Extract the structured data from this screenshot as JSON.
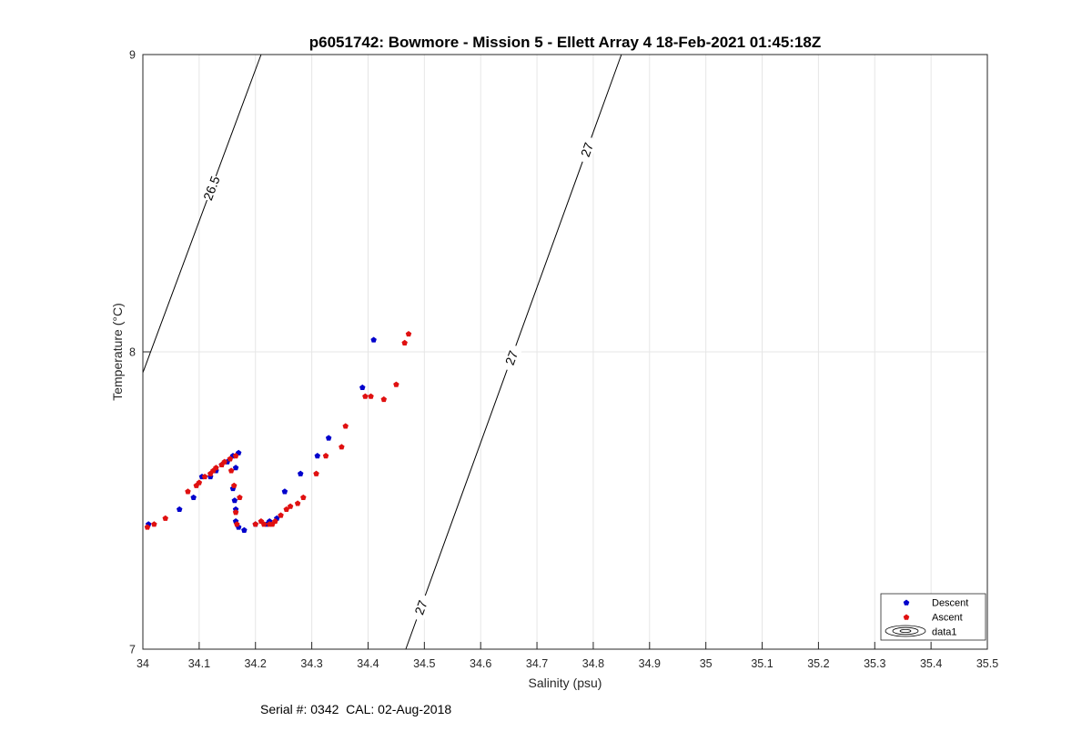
{
  "chart_data": {
    "type": "scatter",
    "title": "p6051742: Bowmore - Mission 5 - Ellett Array 4 18-Feb-2021 01:45:18Z",
    "xlabel": "Salinity (psu)",
    "ylabel": "Temperature (°C)",
    "xlim": [
      34,
      35.5
    ],
    "ylim": [
      7,
      9
    ],
    "x_ticks": [
      "34",
      "34.1",
      "34.2",
      "34.3",
      "34.4",
      "34.5",
      "34.6",
      "34.7",
      "34.8",
      "34.9",
      "35",
      "35.1",
      "35.2",
      "35.3",
      "35.4",
      "35.5"
    ],
    "y_ticks": [
      "7",
      "8",
      "9"
    ],
    "grid": true,
    "legend_position": "bottom-right",
    "legend": [
      "Descent",
      "Ascent",
      "data1"
    ],
    "series": [
      {
        "name": "Descent",
        "color": "#0000cc",
        "points": [
          [
            34.01,
            7.42
          ],
          [
            34.065,
            7.47
          ],
          [
            34.09,
            7.51
          ],
          [
            34.105,
            7.58
          ],
          [
            34.12,
            7.58
          ],
          [
            34.13,
            7.6
          ],
          [
            34.14,
            7.62
          ],
          [
            34.15,
            7.63
          ],
          [
            34.16,
            7.65
          ],
          [
            34.17,
            7.66
          ],
          [
            34.165,
            7.61
          ],
          [
            34.16,
            7.54
          ],
          [
            34.163,
            7.5
          ],
          [
            34.165,
            7.47
          ],
          [
            34.165,
            7.43
          ],
          [
            34.17,
            7.41
          ],
          [
            34.18,
            7.4
          ],
          [
            34.2,
            7.42
          ],
          [
            34.22,
            7.42
          ],
          [
            34.225,
            7.43
          ],
          [
            34.238,
            7.44
          ],
          [
            34.252,
            7.53
          ],
          [
            34.28,
            7.59
          ],
          [
            34.31,
            7.65
          ],
          [
            34.33,
            7.71
          ],
          [
            34.39,
            7.88
          ],
          [
            34.41,
            8.04
          ]
        ]
      },
      {
        "name": "Ascent",
        "color": "#e01010",
        "points": [
          [
            34.008,
            7.41
          ],
          [
            34.02,
            7.42
          ],
          [
            34.04,
            7.44
          ],
          [
            34.08,
            7.53
          ],
          [
            34.095,
            7.55
          ],
          [
            34.1,
            7.56
          ],
          [
            34.11,
            7.58
          ],
          [
            34.12,
            7.59
          ],
          [
            34.125,
            7.6
          ],
          [
            34.13,
            7.61
          ],
          [
            34.14,
            7.62
          ],
          [
            34.145,
            7.63
          ],
          [
            34.155,
            7.64
          ],
          [
            34.165,
            7.65
          ],
          [
            34.157,
            7.6
          ],
          [
            34.162,
            7.55
          ],
          [
            34.165,
            7.46
          ],
          [
            34.167,
            7.42
          ],
          [
            34.172,
            7.51
          ],
          [
            34.2,
            7.42
          ],
          [
            34.21,
            7.43
          ],
          [
            34.215,
            7.42
          ],
          [
            34.225,
            7.42
          ],
          [
            34.23,
            7.42
          ],
          [
            34.235,
            7.43
          ],
          [
            34.245,
            7.45
          ],
          [
            34.255,
            7.47
          ],
          [
            34.262,
            7.48
          ],
          [
            34.275,
            7.49
          ],
          [
            34.285,
            7.51
          ],
          [
            34.308,
            7.59
          ],
          [
            34.325,
            7.65
          ],
          [
            34.353,
            7.68
          ],
          [
            34.36,
            7.75
          ],
          [
            34.395,
            7.85
          ],
          [
            34.405,
            7.85
          ],
          [
            34.428,
            7.84
          ],
          [
            34.45,
            7.89
          ],
          [
            34.465,
            8.03
          ],
          [
            34.472,
            8.06
          ]
        ]
      }
    ],
    "contours": [
      {
        "name": "data1",
        "label": "26.5",
        "points": [
          [
            34.0,
            7.93
          ],
          [
            34.21,
            9.0
          ]
        ]
      },
      {
        "name": "data1",
        "label": "27",
        "points": [
          [
            34.467,
            7.0
          ],
          [
            34.85,
            9.0
          ]
        ]
      }
    ],
    "contour_labels": [
      "26.5",
      "27",
      "27",
      "27"
    ]
  },
  "footer": {
    "serial": "Serial #: 0342  CAL: 02-Aug-2018"
  }
}
